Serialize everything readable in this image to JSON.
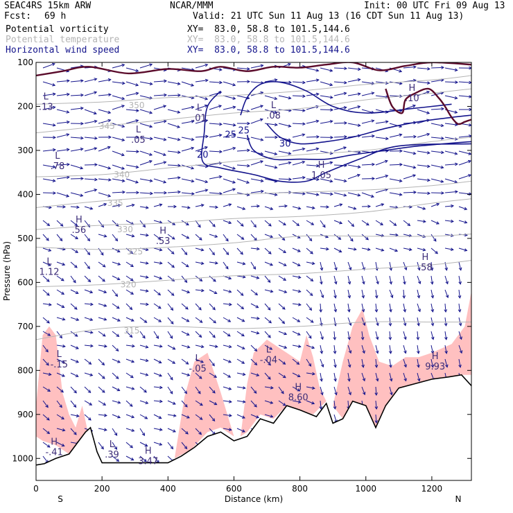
{
  "header": {
    "model": "SEAC4RS 15km ARW",
    "fcst_label": "Fcst:",
    "fcst_value": "69 h",
    "org": "NCAR/MMM",
    "init": "Init: 00 UTC Fri 09 Aug 13",
    "valid": "Valid: 21 UTC Sun 11 Aug 13 (16 CDT Sun 11 Aug 13)"
  },
  "fields": [
    {
      "label": "Potential vorticity",
      "xy": "XY=  83.0, 58.8 to 101.5,144.6",
      "color": "#000000"
    },
    {
      "label": "Potential temperature",
      "xy": "XY=  83.0, 58.8 to 101.5,144.6",
      "color": "#b4b4b4"
    },
    {
      "label": "Horizontal wind speed",
      "xy": "XY=  83.0, 58.8 to 101.5,144.6",
      "color": "#14148c"
    }
  ],
  "chart_data": {
    "type": "cross-section",
    "xlabel": "Distance (km)",
    "ylabel": "Pressure (hPa)",
    "xlim": [
      0,
      1320
    ],
    "ylim": [
      1050,
      100
    ],
    "x_ticks": [
      0,
      200,
      400,
      600,
      800,
      1000,
      1200
    ],
    "y_ticks": [
      100,
      200,
      300,
      400,
      500,
      600,
      700,
      800,
      900,
      1000
    ],
    "x_end_labels": {
      "left": "S",
      "right": "N"
    },
    "colors": {
      "pv_shade": "#ffc0c0",
      "theta": "#b4b4b4",
      "wind": "#14148c",
      "label": "#3c2c78",
      "pv_contour": "#5a0a2a",
      "terrain": "#ffffff"
    },
    "terrain_surface": [
      {
        "x": 0,
        "p": 1015
      },
      {
        "x": 25,
        "p": 1012
      },
      {
        "x": 60,
        "p": 1000
      },
      {
        "x": 100,
        "p": 990
      },
      {
        "x": 130,
        "p": 960
      },
      {
        "x": 150,
        "p": 940
      },
      {
        "x": 165,
        "p": 930
      },
      {
        "x": 185,
        "p": 985
      },
      {
        "x": 200,
        "p": 1010
      },
      {
        "x": 260,
        "p": 1010
      },
      {
        "x": 320,
        "p": 1010
      },
      {
        "x": 400,
        "p": 1010
      },
      {
        "x": 440,
        "p": 995
      },
      {
        "x": 480,
        "p": 975
      },
      {
        "x": 520,
        "p": 950
      },
      {
        "x": 560,
        "p": 940
      },
      {
        "x": 600,
        "p": 960
      },
      {
        "x": 640,
        "p": 950
      },
      {
        "x": 680,
        "p": 910
      },
      {
        "x": 720,
        "p": 920
      },
      {
        "x": 760,
        "p": 880
      },
      {
        "x": 800,
        "p": 890
      },
      {
        "x": 850,
        "p": 905
      },
      {
        "x": 880,
        "p": 875
      },
      {
        "x": 900,
        "p": 920
      },
      {
        "x": 930,
        "p": 910
      },
      {
        "x": 960,
        "p": 870
      },
      {
        "x": 1000,
        "p": 880
      },
      {
        "x": 1030,
        "p": 930
      },
      {
        "x": 1060,
        "p": 880
      },
      {
        "x": 1100,
        "p": 840
      },
      {
        "x": 1150,
        "p": 830
      },
      {
        "x": 1200,
        "p": 820
      },
      {
        "x": 1250,
        "p": 815
      },
      {
        "x": 1290,
        "p": 810
      },
      {
        "x": 1320,
        "p": 835
      }
    ],
    "theta_contours": [
      {
        "level": "315",
        "points": [
          [
            0,
            730
          ],
          [
            200,
            705
          ],
          [
            400,
            700
          ],
          [
            600,
            705
          ],
          [
            800,
            700
          ],
          [
            1000,
            690
          ],
          [
            1200,
            690
          ],
          [
            1320,
            690
          ]
        ],
        "label_at": [
          290,
          710
        ]
      },
      {
        "level": "320",
        "points": [
          [
            0,
            610
          ],
          [
            200,
            605
          ],
          [
            400,
            595
          ],
          [
            600,
            585
          ],
          [
            800,
            580
          ],
          [
            1000,
            570
          ],
          [
            1200,
            560
          ],
          [
            1320,
            550
          ]
        ],
        "label_at": [
          280,
          605
        ]
      },
      {
        "level": "325",
        "points": [
          [
            0,
            520
          ],
          [
            200,
            525
          ],
          [
            400,
            520
          ],
          [
            600,
            510
          ],
          [
            800,
            495
          ],
          [
            1000,
            495
          ],
          [
            1200,
            495
          ],
          [
            1320,
            490
          ]
        ],
        "label_at": [
          300,
          530
        ]
      },
      {
        "level": "330",
        "points": [
          [
            0,
            480
          ],
          [
            200,
            470
          ],
          [
            400,
            465
          ],
          [
            600,
            455
          ],
          [
            800,
            450
          ],
          [
            1000,
            440
          ],
          [
            1200,
            420
          ],
          [
            1320,
            410
          ]
        ],
        "label_at": [
          270,
          480
        ]
      },
      {
        "level": "335",
        "points": [
          [
            0,
            430
          ],
          [
            200,
            415
          ],
          [
            400,
            405
          ],
          [
            600,
            400
          ],
          [
            800,
            395
          ],
          [
            1000,
            390
          ],
          [
            1200,
            380
          ],
          [
            1320,
            370
          ]
        ],
        "label_at": [
          240,
          420
        ]
      },
      {
        "level": "340",
        "points": [
          [
            0,
            360
          ],
          [
            200,
            355
          ],
          [
            400,
            340
          ],
          [
            600,
            325
          ],
          [
            800,
            310
          ],
          [
            1000,
            300
          ],
          [
            1200,
            280
          ],
          [
            1320,
            270
          ]
        ],
        "label_at": [
          260,
          355
        ]
      },
      {
        "level": "345",
        "points": [
          [
            0,
            260
          ],
          [
            200,
            245
          ],
          [
            400,
            230
          ],
          [
            600,
            215
          ],
          [
            800,
            205
          ],
          [
            1000,
            185
          ],
          [
            1200,
            170
          ],
          [
            1320,
            160
          ]
        ],
        "label_at": [
          215,
          245
        ]
      },
      {
        "level": "350",
        "points": [
          [
            0,
            195
          ],
          [
            200,
            190
          ],
          [
            400,
            180
          ],
          [
            600,
            175
          ],
          [
            800,
            165
          ],
          [
            1000,
            150
          ],
          [
            1200,
            140
          ],
          [
            1320,
            130
          ]
        ],
        "label_at": [
          305,
          198
        ]
      }
    ],
    "wind_speed_contours": [
      {
        "level": "20",
        "points": [
          [
            560,
            165
          ],
          [
            520,
            200
          ],
          [
            510,
            260
          ],
          [
            505,
            325
          ],
          [
            560,
            340
          ],
          [
            660,
            355
          ],
          [
            740,
            370
          ],
          [
            820,
            370
          ],
          [
            880,
            350
          ],
          [
            980,
            320
          ],
          [
            1100,
            290
          ],
          [
            1320,
            285
          ]
        ],
        "label_at": [
          505,
          310
        ]
      },
      {
        "level": "25",
        "points": [
          [
            640,
            265
          ],
          [
            660,
            300
          ],
          [
            720,
            320
          ],
          [
            800,
            320
          ],
          [
            880,
            320
          ],
          [
            960,
            310
          ],
          [
            1060,
            300
          ],
          [
            1160,
            290
          ],
          [
            1320,
            280
          ]
        ],
        "label_at": [
          590,
          265
        ]
      },
      {
        "level": "30",
        "points": [
          [
            700,
            240
          ],
          [
            740,
            270
          ],
          [
            800,
            285
          ],
          [
            880,
            280
          ],
          [
            960,
            270
          ],
          [
            1060,
            250
          ],
          [
            1160,
            235
          ],
          [
            1260,
            225
          ],
          [
            1320,
            220
          ]
        ],
        "label_at": [
          755,
          285
        ]
      },
      {
        "level": "25",
        "points": [
          [
            620,
            220
          ],
          [
            640,
            180
          ],
          [
            680,
            150
          ],
          [
            740,
            145
          ],
          [
            820,
            165
          ],
          [
            900,
            200
          ],
          [
            1000,
            215
          ],
          [
            1140,
            205
          ],
          [
            1260,
            195
          ]
        ],
        "label_at": [
          630,
          255
        ]
      }
    ],
    "pv_shade_regions": [
      [
        [
          0,
          880
        ],
        [
          20,
          720
        ],
        [
          40,
          700
        ],
        [
          60,
          720
        ],
        [
          80,
          850
        ],
        [
          100,
          900
        ],
        [
          120,
          930
        ],
        [
          140,
          880
        ],
        [
          160,
          950
        ],
        [
          140,
          990
        ],
        [
          100,
          990
        ],
        [
          60,
          970
        ],
        [
          20,
          960
        ],
        [
          0,
          950
        ]
      ],
      [
        [
          420,
          1000
        ],
        [
          450,
          860
        ],
        [
          480,
          780
        ],
        [
          520,
          760
        ],
        [
          560,
          850
        ],
        [
          600,
          950
        ],
        [
          560,
          930
        ],
        [
          520,
          940
        ],
        [
          470,
          980
        ]
      ],
      [
        [
          620,
          950
        ],
        [
          640,
          830
        ],
        [
          660,
          760
        ],
        [
          700,
          730
        ],
        [
          740,
          750
        ],
        [
          760,
          760
        ],
        [
          800,
          780
        ],
        [
          820,
          720
        ],
        [
          840,
          770
        ],
        [
          860,
          840
        ],
        [
          880,
          870
        ],
        [
          840,
          900
        ],
        [
          800,
          890
        ],
        [
          760,
          880
        ],
        [
          720,
          910
        ],
        [
          680,
          900
        ],
        [
          640,
          940
        ]
      ],
      [
        [
          900,
          880
        ],
        [
          930,
          780
        ],
        [
          960,
          700
        ],
        [
          990,
          660
        ],
        [
          1010,
          720
        ],
        [
          1040,
          780
        ],
        [
          1080,
          790
        ],
        [
          1120,
          770
        ],
        [
          1160,
          770
        ],
        [
          1200,
          760
        ],
        [
          1260,
          740
        ],
        [
          1300,
          700
        ],
        [
          1320,
          620
        ],
        [
          1320,
          810
        ],
        [
          1290,
          810
        ],
        [
          1250,
          815
        ],
        [
          1200,
          820
        ],
        [
          1150,
          830
        ],
        [
          1100,
          840
        ],
        [
          1060,
          880
        ],
        [
          1030,
          930
        ],
        [
          1000,
          880
        ],
        [
          960,
          870
        ],
        [
          930,
          910
        ]
      ]
    ],
    "pv_contour_lines": [
      [
        [
          0,
          130
        ],
        [
          80,
          120
        ],
        [
          160,
          110
        ],
        [
          280,
          125
        ],
        [
          400,
          115
        ],
        [
          500,
          120
        ],
        [
          560,
          110
        ],
        [
          640,
          120
        ],
        [
          720,
          110
        ],
        [
          800,
          112
        ],
        [
          880,
          105
        ],
        [
          960,
          100
        ],
        [
          1040,
          118
        ],
        [
          1120,
          108
        ],
        [
          1200,
          100
        ],
        [
          1320,
          105
        ]
      ],
      [
        [
          1060,
          160
        ],
        [
          1080,
          200
        ],
        [
          1110,
          215
        ],
        [
          1120,
          185
        ],
        [
          1150,
          170
        ],
        [
          1190,
          160
        ],
        [
          1220,
          180
        ],
        [
          1240,
          200
        ],
        [
          1260,
          225
        ],
        [
          1280,
          240
        ],
        [
          1300,
          235
        ],
        [
          1320,
          230
        ]
      ]
    ],
    "extrema_labels": [
      {
        "type": "L",
        "value": ".13",
        "x": 30,
        "p": 200
      },
      {
        "type": "L",
        "value": ".78",
        "x": 65,
        "p": 335
      },
      {
        "type": "L",
        "value": "1.12",
        "x": 40,
        "p": 575
      },
      {
        "type": "L",
        "value": "-.15",
        "x": 70,
        "p": 785
      },
      {
        "type": "H",
        "value": "-.41",
        "x": 55,
        "p": 985
      },
      {
        "type": "H",
        "value": ".56",
        "x": 130,
        "p": 480
      },
      {
        "type": "H",
        "value": ".53",
        "x": 385,
        "p": 505
      },
      {
        "type": "L",
        "value": ".05",
        "x": 310,
        "p": 275
      },
      {
        "type": "L",
        "value": ".01",
        "x": 495,
        "p": 225
      },
      {
        "type": "L",
        "value": ".08",
        "x": 720,
        "p": 220
      },
      {
        "type": "H",
        "value": "1.05",
        "x": 865,
        "p": 355
      },
      {
        "type": "L",
        "value": "-.05",
        "x": 490,
        "p": 795
      },
      {
        "type": "L",
        "value": "-.04",
        "x": 705,
        "p": 775
      },
      {
        "type": "H",
        "value": "8.60",
        "x": 795,
        "p": 860
      },
      {
        "type": "H",
        "value": ".58",
        "x": 1180,
        "p": 565
      },
      {
        "type": "H",
        "value": "9.93",
        "x": 1210,
        "p": 790
      },
      {
        "type": "L",
        "value": ".39",
        "x": 230,
        "p": 990
      },
      {
        "type": "H",
        "value": "3.47",
        "x": 340,
        "p": 1005
      },
      {
        "type": "H",
        "value": ".10",
        "x": 1140,
        "p": 180
      }
    ],
    "grid": false
  }
}
